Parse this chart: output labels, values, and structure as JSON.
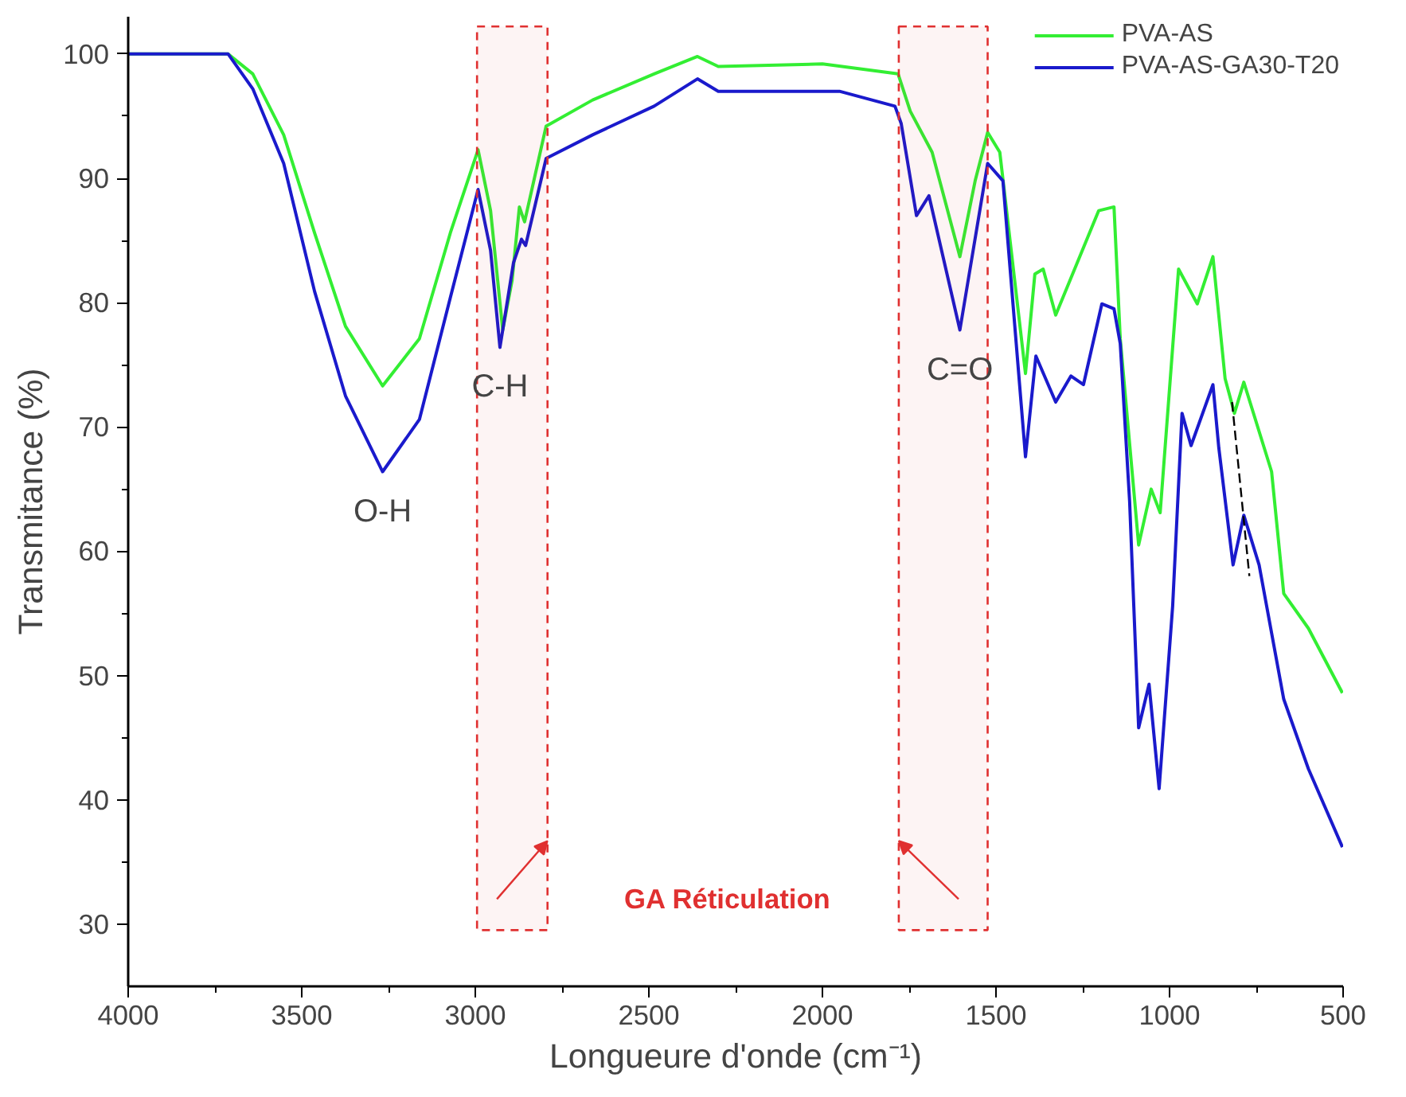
{
  "chart_data": {
    "type": "line",
    "xlabel": "Longueure d'onde (cm⁻¹)",
    "ylabel": "Transmitance (%)",
    "xlim": [
      4000,
      500
    ],
    "ylim": [
      25,
      103
    ],
    "xticks": [
      4000,
      3500,
      3000,
      2500,
      2000,
      1500,
      1000,
      500,
      {
        "value": 3750,
        "label": null
      },
      {
        "value": 3250,
        "label": null
      },
      {
        "value": 2750,
        "label": null
      },
      {
        "value": 2250,
        "label": null
      },
      {
        "value": 1750,
        "label": null
      },
      {
        "value": 1250,
        "label": null
      },
      {
        "value": 750,
        "label": null
      }
    ],
    "yticks": [
      30,
      40,
      50,
      60,
      70,
      80,
      90,
      100,
      {
        "value": 35,
        "label": null
      },
      {
        "value": 45,
        "label": null
      },
      {
        "value": 55,
        "label": null
      },
      {
        "value": 65,
        "label": null
      },
      {
        "value": 75,
        "label": null
      },
      {
        "value": 85,
        "label": null
      },
      {
        "value": 95,
        "label": null
      }
    ],
    "grid": false,
    "legend": "top right",
    "line_style": "solid",
    "series": [
      {
        "name": "PVA-AS",
        "color": "#33ee33",
        "x": [
          4000,
          3712,
          3641,
          3552,
          3463,
          3374,
          3267,
          3161,
          3072,
          2992,
          2956,
          2921,
          2894,
          2873,
          2858,
          2796,
          2662,
          2485,
          2360,
          2300,
          2000,
          1782,
          1747,
          1684,
          1604,
          1560,
          1524,
          1489,
          1415,
          1388,
          1364,
          1328,
          1204,
          1160,
          1142,
          1089,
          1053,
          1027,
          974,
          920,
          875,
          840,
          813,
          786,
          706,
          671,
          600,
          502
        ],
        "values": [
          100,
          100,
          98.4,
          93.5,
          85.6,
          78.1,
          73.3,
          77.1,
          85.6,
          92.3,
          87.4,
          77.8,
          81.8,
          87.7,
          86.5,
          94.2,
          96.3,
          98.4,
          99.8,
          99,
          99.2,
          98.4,
          95.4,
          92.1,
          83.7,
          89.8,
          93.7,
          92.1,
          74.3,
          82.3,
          82.7,
          79,
          87.4,
          87.7,
          77.1,
          60.5,
          65,
          63.1,
          82.7,
          79.9,
          83.7,
          73.9,
          71.1,
          73.6,
          66.4,
          56.6,
          53.8,
          48.6
        ]
      },
      {
        "name": "PVA-AS-GA30-T20",
        "color": "#1a1acc",
        "x": [
          4000,
          3712,
          3641,
          3552,
          3463,
          3374,
          3267,
          3161,
          3072,
          2992,
          2956,
          2929,
          2890,
          2867,
          2855,
          2796,
          2662,
          2485,
          2360,
          2300,
          1951,
          1791,
          1773,
          1729,
          1693,
          1604,
          1524,
          1480,
          1415,
          1385,
          1328,
          1284,
          1248,
          1195,
          1160,
          1142,
          1115,
          1089,
          1059,
          1030,
          991,
          964,
          938,
          875,
          858,
          817,
          786,
          742,
          671,
          600,
          502
        ],
        "values": [
          100,
          100,
          97.2,
          91.2,
          80.9,
          72.5,
          66.4,
          70.6,
          80.4,
          89.1,
          84.2,
          76.4,
          83.2,
          85.1,
          84.6,
          91.6,
          93.5,
          95.8,
          98,
          97,
          97,
          95.8,
          94.4,
          87,
          88.6,
          77.8,
          91.2,
          89.8,
          67.6,
          75.7,
          72,
          74.1,
          73.4,
          79.9,
          79.5,
          76.7,
          64,
          45.8,
          49.3,
          40.9,
          55.6,
          71.1,
          68.5,
          73.4,
          68.3,
          58.9,
          62.9,
          58.9,
          48.1,
          42.5,
          36.2
        ]
      },
      {
        "color": "#000000",
        "line_style": "dashed",
        "x": [
          820,
          770
        ],
        "values": [
          72,
          58
        ]
      }
    ],
    "bands": [
      {
        "axis": "x",
        "from": 2995,
        "to": 2792,
        "color": "#e03030"
      },
      {
        "axis": "x",
        "from": 1780,
        "to": 1524,
        "color": "#e03030"
      }
    ],
    "annotations": [
      {
        "text": "O-H",
        "x": 3267,
        "y": 66.4
      },
      {
        "text": "C-H",
        "x": 2929,
        "y": 76.4
      },
      {
        "text": "C=O",
        "x": 1604,
        "y": 77.8
      },
      "GA Réticulation"
    ]
  }
}
